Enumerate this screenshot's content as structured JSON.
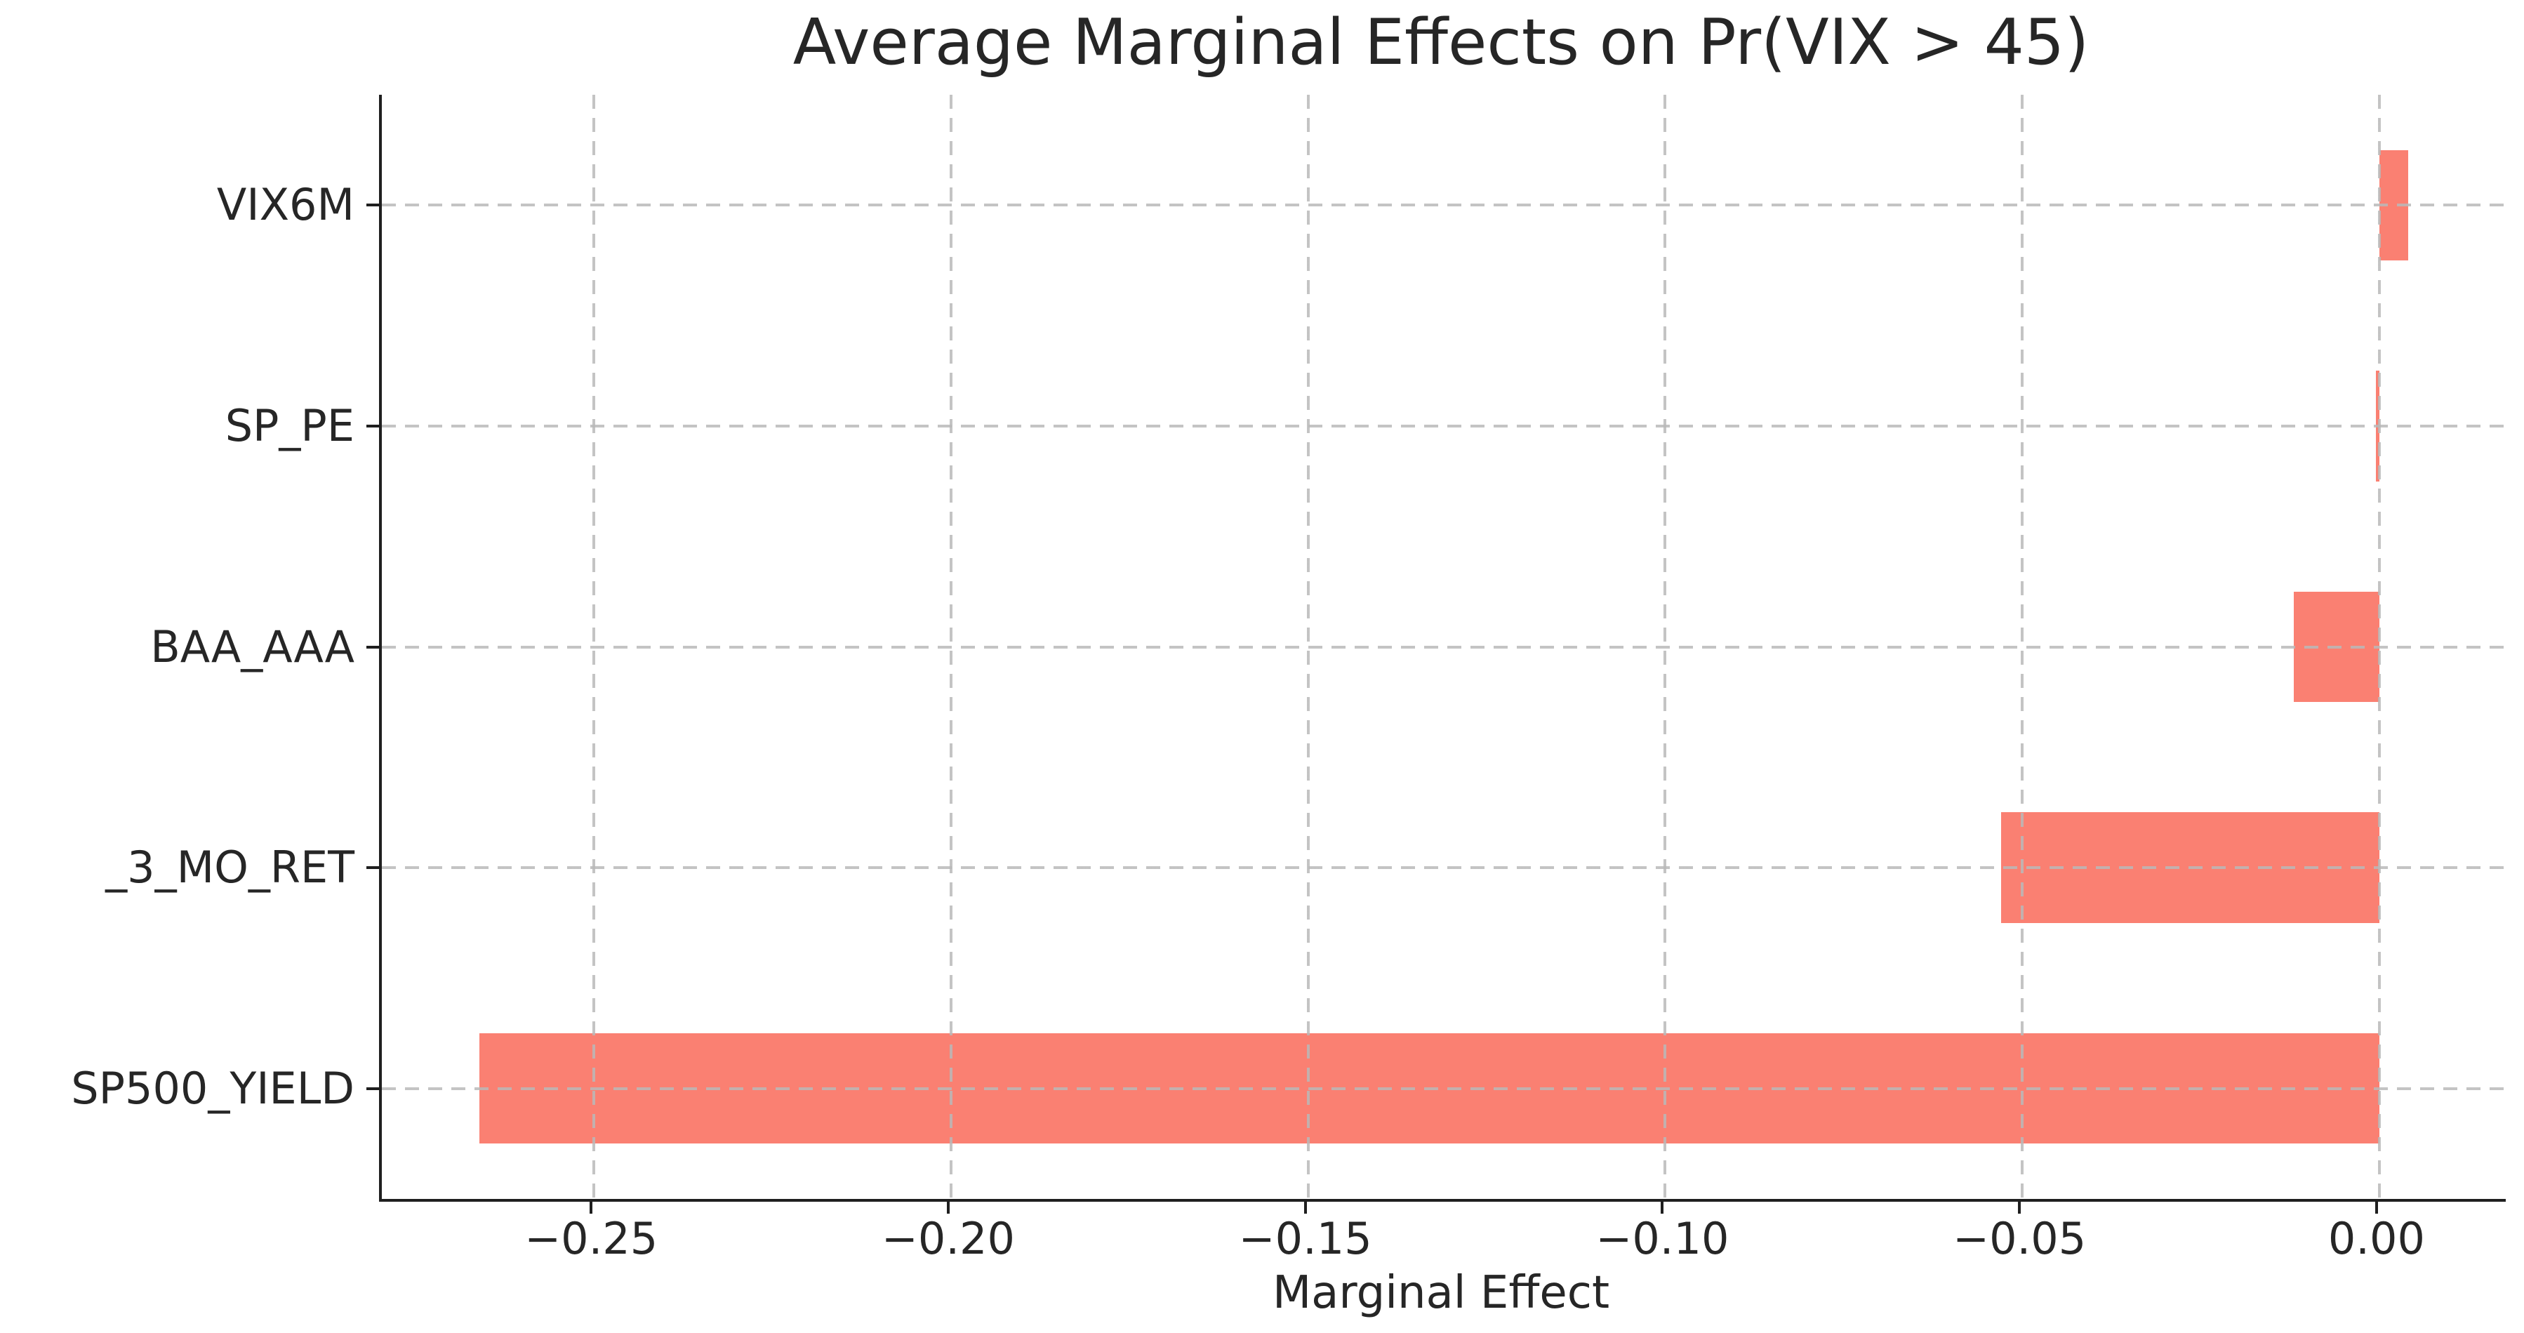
{
  "chart_data": {
    "type": "bar",
    "orientation": "horizontal",
    "title": "Average Marginal Effects on Pr(VIX > 45)",
    "xlabel": "Marginal Effect",
    "ylabel": "",
    "categories": [
      "VIX6M",
      "SP_PE",
      "BAA_AAA",
      "_3_MO_RET",
      "SP500_YIELD"
    ],
    "values": [
      0.004,
      -0.0005,
      -0.012,
      -0.053,
      -0.266
    ],
    "x_ticks": [
      -0.25,
      -0.2,
      -0.15,
      -0.1,
      -0.05,
      0.0
    ],
    "x_tick_labels": [
      "−0.25",
      "−0.20",
      "−0.15",
      "−0.10",
      "−0.05",
      "0.00"
    ],
    "xlim": [
      -0.2797,
      0.0177
    ],
    "grid": true,
    "legend": "none",
    "bar_color": "#FA8072",
    "grid_color": "#b9b9b9",
    "spine_color": "#1f1f1f",
    "text_color": "#262626",
    "background_color": "#ffffff"
  }
}
